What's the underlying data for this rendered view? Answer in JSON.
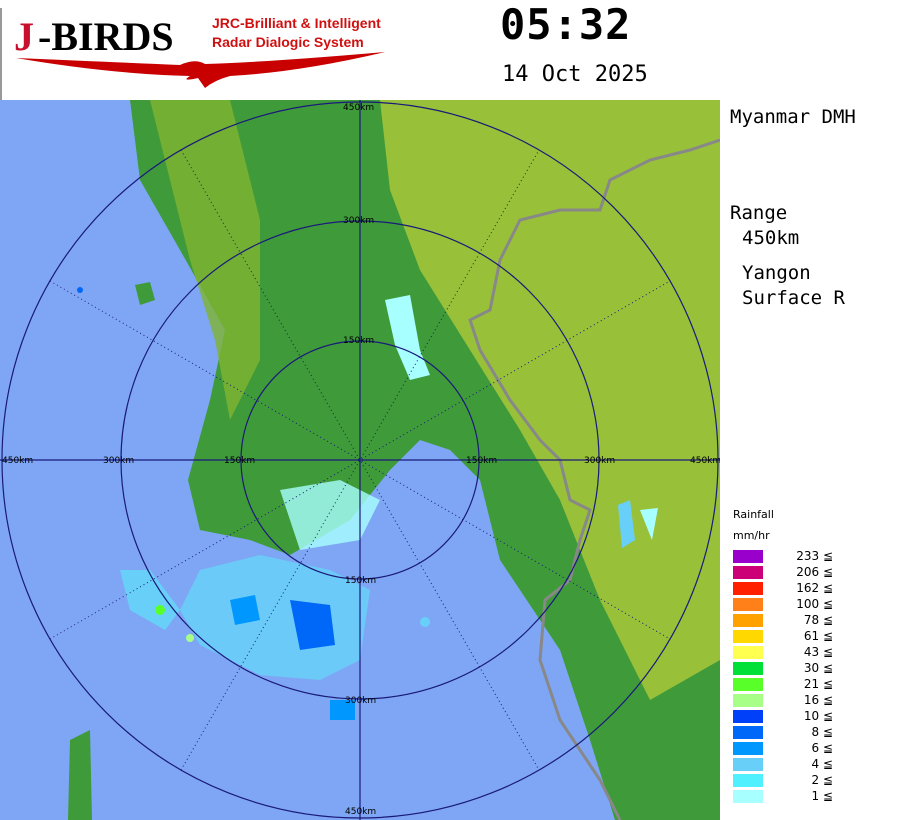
{
  "logo": {
    "brand": "J-BIRDS",
    "tagline_1": "JRC-Brilliant & Intelligent",
    "tagline_2": "Radar Dialogic System"
  },
  "header": {
    "time": "05:32",
    "date": "14 Oct 2025"
  },
  "side": {
    "agency": "Myanmar DMH",
    "range_label": "Range",
    "range_value": "450km",
    "site": "Yangon",
    "product": "Surface R"
  },
  "map": {
    "range_rings": [
      "150km",
      "300km",
      "450km"
    ],
    "colors": {
      "ocean": "#7ea6f4",
      "land": "#3f9a3a",
      "highland": "#a8c83a",
      "ring": "#1a1a7a",
      "border": "#888888"
    }
  },
  "legend": {
    "title": "Rainfall",
    "unit": "mm/hr",
    "entries": [
      {
        "value": "233 ≦",
        "color": "#9900cc"
      },
      {
        "value": "206 ≦",
        "color": "#cc0077"
      },
      {
        "value": "162 ≦",
        "color": "#ff2000"
      },
      {
        "value": "100 ≦",
        "color": "#ff8018"
      },
      {
        "value": "78 ≦",
        "color": "#ffa200"
      },
      {
        "value": "61 ≦",
        "color": "#ffd800"
      },
      {
        "value": "43 ≦",
        "color": "#ffff50"
      },
      {
        "value": "30 ≦",
        "color": "#00e038"
      },
      {
        "value": "21 ≦",
        "color": "#58ff28"
      },
      {
        "value": "16 ≦",
        "color": "#a8ff88"
      },
      {
        "value": "10 ≦",
        "color": "#0040f8"
      },
      {
        "value": "8 ≦",
        "color": "#0068f8"
      },
      {
        "value": "6 ≦",
        "color": "#0098ff"
      },
      {
        "value": "4 ≦",
        "color": "#68d0f8"
      },
      {
        "value": "2 ≦",
        "color": "#50f0ff"
      },
      {
        "value": "1 ≦",
        "color": "#a8ffff"
      }
    ]
  }
}
